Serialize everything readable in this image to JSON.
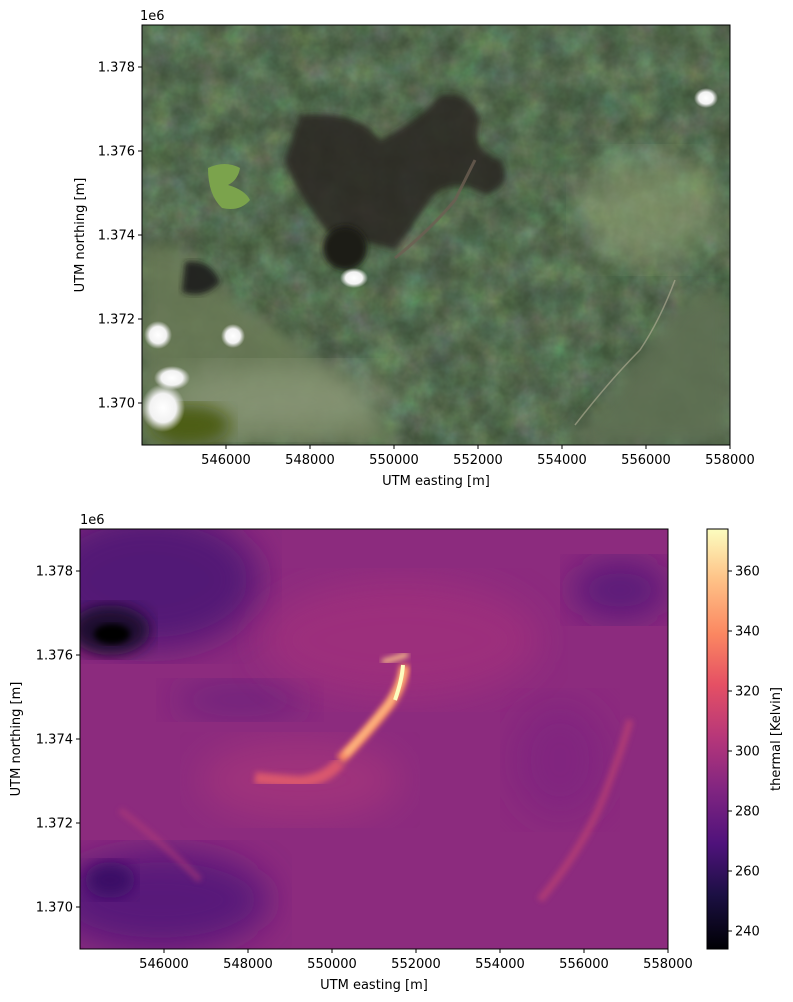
{
  "chart_data": [
    {
      "type": "heatmap",
      "subtype": "rgb-satellite-image",
      "xlabel": "UTM easting [m]",
      "ylabel": "UTM northing [m]",
      "y_offset_label": "1e6",
      "x_ticks": [
        "546000",
        "548000",
        "550000",
        "552000",
        "554000",
        "556000",
        "558000"
      ],
      "x_tick_values": [
        546000,
        548000,
        550000,
        552000,
        554000,
        556000,
        558000
      ],
      "y_ticks": [
        "1.370",
        "1.372",
        "1.374",
        "1.376",
        "1.378"
      ],
      "y_tick_values": [
        1.37,
        1.372,
        1.374,
        1.376,
        1.378
      ],
      "xlim": [
        544000,
        558000
      ],
      "ylim": [
        1.369,
        1.379
      ],
      "features": {
        "lakes": [
          {
            "x": [
              544000,
              547500
            ],
            "y": [
              1.3694,
              1.3745
            ]
          },
          {
            "x": [
              554000,
              558000
            ],
            "y": [
              1.369,
              1.3735
            ]
          }
        ],
        "clouds": [
          {
            "x": 544500,
            "y": 1.3701
          },
          {
            "x": 545000,
            "y": 1.3707
          },
          {
            "x": 546200,
            "y": 1.3716
          },
          {
            "x": 549100,
            "y": 1.3729
          },
          {
            "x": 557000,
            "y": 1.3777
          }
        ],
        "green_patch": {
          "x": 546900,
          "y": 1.3753
        },
        "summit_crater": {
          "x": 549300,
          "y": 1.3735
        }
      }
    },
    {
      "type": "heatmap",
      "xlabel": "UTM easting [m]",
      "ylabel": "UTM northing [m]",
      "y_offset_label": "1e6",
      "x_ticks": [
        "546000",
        "548000",
        "550000",
        "552000",
        "554000",
        "556000",
        "558000"
      ],
      "x_tick_values": [
        546000,
        548000,
        550000,
        552000,
        554000,
        556000,
        558000
      ],
      "y_ticks": [
        "1.370",
        "1.372",
        "1.374",
        "1.376",
        "1.378"
      ],
      "y_tick_values": [
        1.37,
        1.372,
        1.374,
        1.376,
        1.378
      ],
      "xlim": [
        544000,
        558000
      ],
      "ylim": [
        1.369,
        1.379
      ],
      "colorbar": {
        "label": "thermal [Kelvin]",
        "colormap": "magma",
        "range": [
          234,
          374
        ],
        "ticks": [
          "240",
          "260",
          "280",
          "300",
          "320",
          "340",
          "360"
        ],
        "tick_values": [
          240,
          260,
          280,
          300,
          320,
          340,
          360
        ]
      },
      "hotspots": {
        "lava_flow": [
          [
            550100,
            1.3735
          ],
          [
            550800,
            1.3743
          ],
          [
            551400,
            1.375
          ],
          [
            551800,
            1.3757
          ],
          [
            551900,
            1.376
          ]
        ],
        "lava_branch": [
          [
            550100,
            1.3735
          ],
          [
            550300,
            1.373
          ],
          [
            549500,
            1.3729
          ],
          [
            548500,
            1.373
          ]
        ],
        "max_temperature_K": 370
      },
      "cold_spots": [
        {
          "x": 544800,
          "y": 1.3762,
          "value_K": 240
        },
        {
          "x": 544700,
          "y": 1.378,
          "value_K": 268
        },
        {
          "x": 545000,
          "y": 1.3695,
          "value_K": 270
        }
      ]
    }
  ]
}
